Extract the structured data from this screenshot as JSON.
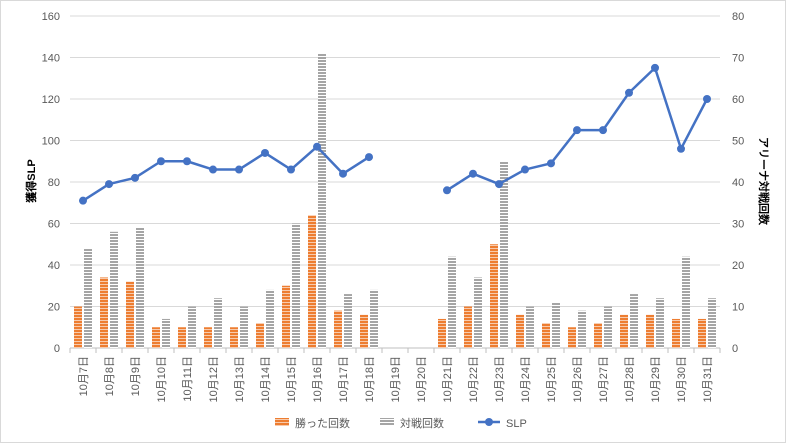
{
  "chart_data": {
    "type": "bar",
    "categories": [
      "10月7日",
      "10月8日",
      "10月9日",
      "10月10日",
      "10月11日",
      "10月12日",
      "10月13日",
      "10月14日",
      "10月15日",
      "10月16日",
      "10月17日",
      "10月18日",
      "10月19日",
      "10月20日",
      "10月21日",
      "10月22日",
      "10月23日",
      "10月24日",
      "10月25日",
      "10月26日",
      "10月27日",
      "10月28日",
      "10月29日",
      "10月30日",
      "10月31日"
    ],
    "series": [
      {
        "name": "勝った回数",
        "type": "bar",
        "axis": "right",
        "color": "#ED7D31",
        "values": [
          10,
          17,
          16,
          5,
          5,
          5,
          5,
          6,
          15,
          32,
          9,
          8,
          0,
          0,
          7,
          10,
          25,
          8,
          6,
          5,
          6,
          8,
          8,
          7,
          7
        ]
      },
      {
        "name": "対戦回数",
        "type": "bar",
        "axis": "right",
        "color": "#A5A5A5",
        "values": [
          24,
          28,
          29,
          7,
          10,
          12,
          10,
          14,
          30,
          71,
          13,
          14,
          0,
          0,
          22,
          17,
          45,
          10,
          11,
          9,
          10,
          13,
          12,
          22,
          12
        ]
      },
      {
        "name": "SLP",
        "type": "line",
        "axis": "left",
        "color": "#4472C4",
        "values": [
          71,
          79,
          82,
          90,
          90,
          86,
          86,
          94,
          86,
          97,
          84,
          92,
          null,
          null,
          76,
          84,
          79,
          86,
          89,
          105,
          105,
          123,
          135,
          96,
          120
        ]
      }
    ],
    "ylabel": "獲得SLP",
    "y2label": "アリーナ対戦回数",
    "ylim": [
      0,
      160
    ],
    "y2lim": [
      0,
      80
    ],
    "yticks": [
      "0",
      "20",
      "40",
      "60",
      "80",
      "100",
      "120",
      "140",
      "160"
    ],
    "y2ticks": [
      "0",
      "10",
      "20",
      "30",
      "40",
      "50",
      "60",
      "70",
      "80"
    ],
    "grid": true,
    "legend": "bottom"
  }
}
